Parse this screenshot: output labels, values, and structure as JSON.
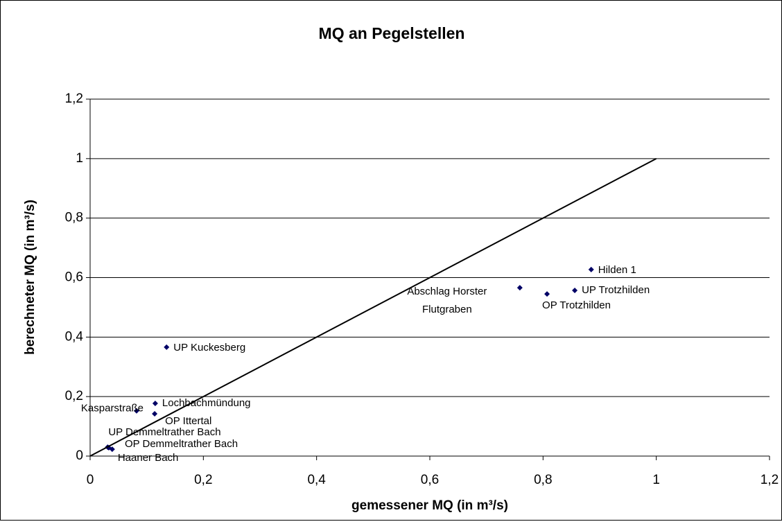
{
  "chart_data": {
    "type": "scatter",
    "title": "MQ an Pegelstellen",
    "xlabel": "gemessener MQ (in m³/s)",
    "ylabel": "berechneter MQ (in m³/s)",
    "xlim": [
      0,
      1.2
    ],
    "ylim": [
      0,
      1.2
    ],
    "xticks": [
      0,
      {
        "value": 0.2,
        "label": "0,2"
      },
      {
        "value": 0.4,
        "label": "0,4"
      },
      {
        "value": 0.6,
        "label": "0,6"
      },
      {
        "value": 0.8,
        "label": "0,8"
      },
      1,
      {
        "value": 1.2,
        "label": "1,2"
      }
    ],
    "yticks": [
      0,
      {
        "value": 0.2,
        "label": "0,2"
      },
      {
        "value": 0.4,
        "label": "0,4"
      },
      {
        "value": 0.6,
        "label": "0,6"
      },
      {
        "value": 0.8,
        "label": "0,8"
      },
      1,
      {
        "value": 1.2,
        "label": "1,2"
      }
    ],
    "grid": true,
    "series": [
      {
        "color": "#000066",
        "x": [
          0.885,
          0.856,
          0.807,
          0.759,
          0.135,
          0.115,
          0.114,
          0.082,
          0.031,
          0.033,
          0.039
        ],
        "values": [
          0.627,
          0.557,
          0.545,
          0.566,
          0.366,
          0.177,
          0.142,
          0.152,
          0.03,
          0.028,
          0.023
        ],
        "labels": [
          "Hilden 1",
          "UP Trotzhilden",
          "OP Trotzhilden",
          [
            "Abschlag Horster",
            "Flutgraben"
          ],
          "UP Kuckesberg",
          "Lochbachmündung",
          "OP Ittertal",
          "Kasparstraße",
          "UP Demmeltrather Bach",
          "OP Demmeltrather Bach",
          "Haaner Bach"
        ]
      },
      {
        "type": "line",
        "color": "#000000",
        "x": [
          0,
          1
        ],
        "values": [
          0,
          1
        ]
      }
    ]
  }
}
